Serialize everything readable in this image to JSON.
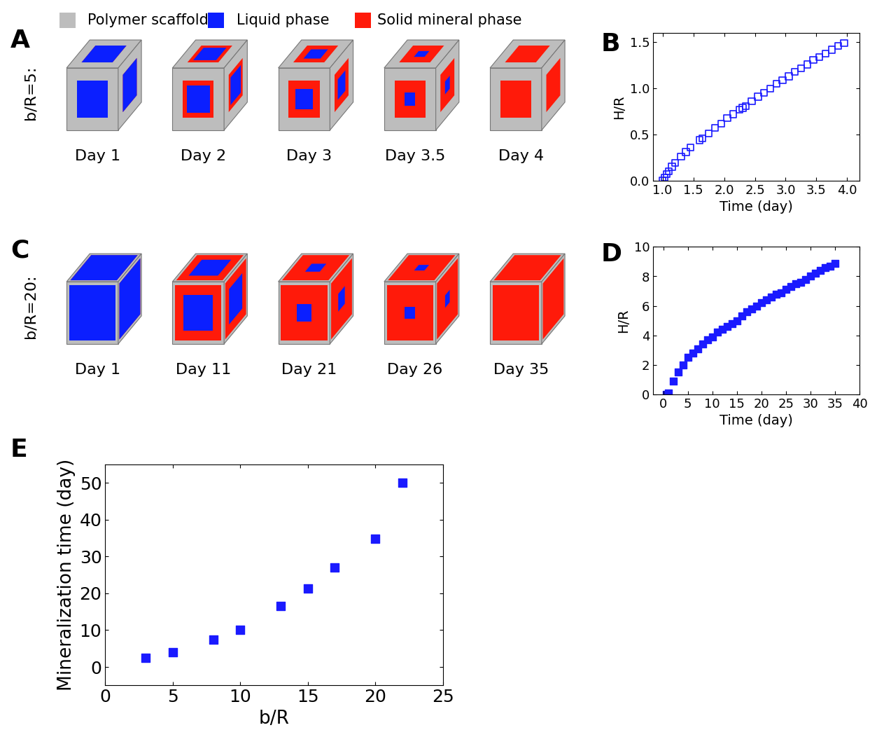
{
  "legend": [
    {
      "label": "Polymer scaffold",
      "color": "#bdbdbd"
    },
    {
      "label": "Liquid phase",
      "color": "#0b1fff"
    },
    {
      "label": "Solid mineral phase",
      "color": "#ff1a0a"
    }
  ],
  "cube_rows": [
    {
      "panel": "A",
      "row_label": "b/R=5:",
      "snapshots": [
        {
          "label": "Day 1",
          "liquid_fraction": 1.0
        },
        {
          "label": "Day 2",
          "liquid_fraction": 0.55
        },
        {
          "label": "Day 3",
          "liquid_fraction": 0.3
        },
        {
          "label": "Day 3.5",
          "liquid_fraction": 0.12
        },
        {
          "label": "Day 4",
          "liquid_fraction": 0.0
        }
      ]
    },
    {
      "panel": "C",
      "row_label": "b/R=20:",
      "snapshots": [
        {
          "label": "Day 1",
          "liquid_fraction": 1.0
        },
        {
          "label": "Day 11",
          "liquid_fraction": 0.4
        },
        {
          "label": "Day 21",
          "liquid_fraction": 0.1
        },
        {
          "label": "Day 26",
          "liquid_fraction": 0.05
        },
        {
          "label": "Day 35",
          "liquid_fraction": 0.0
        }
      ]
    }
  ],
  "chart_data": [
    {
      "panel": "B",
      "type": "scatter",
      "x_label": "Time (day)",
      "y_label": "H/R",
      "marker": "square_open",
      "color": "#1a1aff",
      "x": [
        1.0,
        1.03,
        1.07,
        1.1,
        1.15,
        1.2,
        1.3,
        1.38,
        1.45,
        1.6,
        1.65,
        1.75,
        1.85,
        1.95,
        2.05,
        2.15,
        2.25,
        2.3,
        2.35,
        2.45,
        2.55,
        2.65,
        2.75,
        2.85,
        2.95,
        3.05,
        3.15,
        3.25,
        3.35,
        3.45,
        3.55,
        3.65,
        3.75,
        3.85,
        3.95
      ],
      "values": [
        0.0,
        0.03,
        0.07,
        0.1,
        0.15,
        0.19,
        0.26,
        0.31,
        0.36,
        0.44,
        0.46,
        0.51,
        0.57,
        0.62,
        0.68,
        0.72,
        0.77,
        0.79,
        0.81,
        0.86,
        0.91,
        0.95,
        1.0,
        1.05,
        1.09,
        1.13,
        1.18,
        1.22,
        1.26,
        1.31,
        1.34,
        1.38,
        1.42,
        1.46,
        1.49
      ],
      "xlim": [
        0.85,
        4.2
      ],
      "xticks": [
        {
          "value": 1.0,
          "label": "1.0"
        },
        {
          "value": 1.5,
          "label": "1.5"
        },
        {
          "value": 2.0,
          "label": "2.0"
        },
        {
          "value": 2.5,
          "label": "2.5"
        },
        {
          "value": 3.0,
          "label": "3.0"
        },
        {
          "value": 3.5,
          "label": "3.5"
        },
        {
          "value": 4.0,
          "label": "4.0"
        }
      ],
      "ylim": [
        0,
        1.6
      ],
      "yticks": [
        {
          "value": 0,
          "label": "0.0"
        },
        {
          "value": 0.5,
          "label": "0.5"
        },
        {
          "value": 1.0,
          "label": "1.0"
        },
        {
          "value": 1.5,
          "label": "1.5"
        }
      ]
    },
    {
      "panel": "D",
      "type": "scatter",
      "x_label": "Time (day)",
      "y_label": "H/R",
      "marker": "square",
      "color": "#1a1aff",
      "x": [
        0.7,
        1,
        2,
        3,
        4,
        5,
        6,
        7,
        8,
        9,
        10,
        11,
        12,
        13,
        14,
        15,
        16,
        17,
        18,
        19,
        20,
        21,
        22,
        23,
        24,
        25,
        26,
        27,
        28,
        29,
        30,
        31,
        32,
        33,
        34,
        35
      ],
      "values": [
        0.0,
        0.1,
        0.9,
        1.5,
        2.0,
        2.5,
        2.8,
        3.1,
        3.4,
        3.7,
        3.9,
        4.2,
        4.4,
        4.6,
        4.8,
        5.0,
        5.3,
        5.6,
        5.8,
        6.0,
        6.2,
        6.4,
        6.6,
        6.8,
        6.9,
        7.1,
        7.3,
        7.5,
        7.6,
        7.8,
        8.0,
        8.2,
        8.4,
        8.6,
        8.7,
        8.9
      ],
      "xlim": [
        -2,
        40
      ],
      "xticks": [
        0,
        5,
        10,
        15,
        20,
        25,
        30,
        35,
        40
      ],
      "ylim": [
        0,
        10
      ],
      "yticks": [
        0,
        2,
        4,
        6,
        8,
        10
      ]
    },
    {
      "panel": "E",
      "type": "scatter",
      "x_label": "b/R",
      "y_label": "Mineralization time (day)",
      "marker": "square",
      "color": "#1a1aff",
      "x": [
        3,
        5,
        8,
        10,
        13,
        15,
        17,
        20,
        22
      ],
      "values": [
        2.5,
        4,
        7.5,
        10,
        16.5,
        21.3,
        27,
        34.8,
        50
      ],
      "xlim": [
        0,
        25
      ],
      "xticks": [
        0,
        5,
        10,
        15,
        20,
        25
      ],
      "ylim": [
        -5,
        55
      ],
      "yticks": [
        0,
        10,
        20,
        30,
        40,
        50
      ]
    }
  ]
}
